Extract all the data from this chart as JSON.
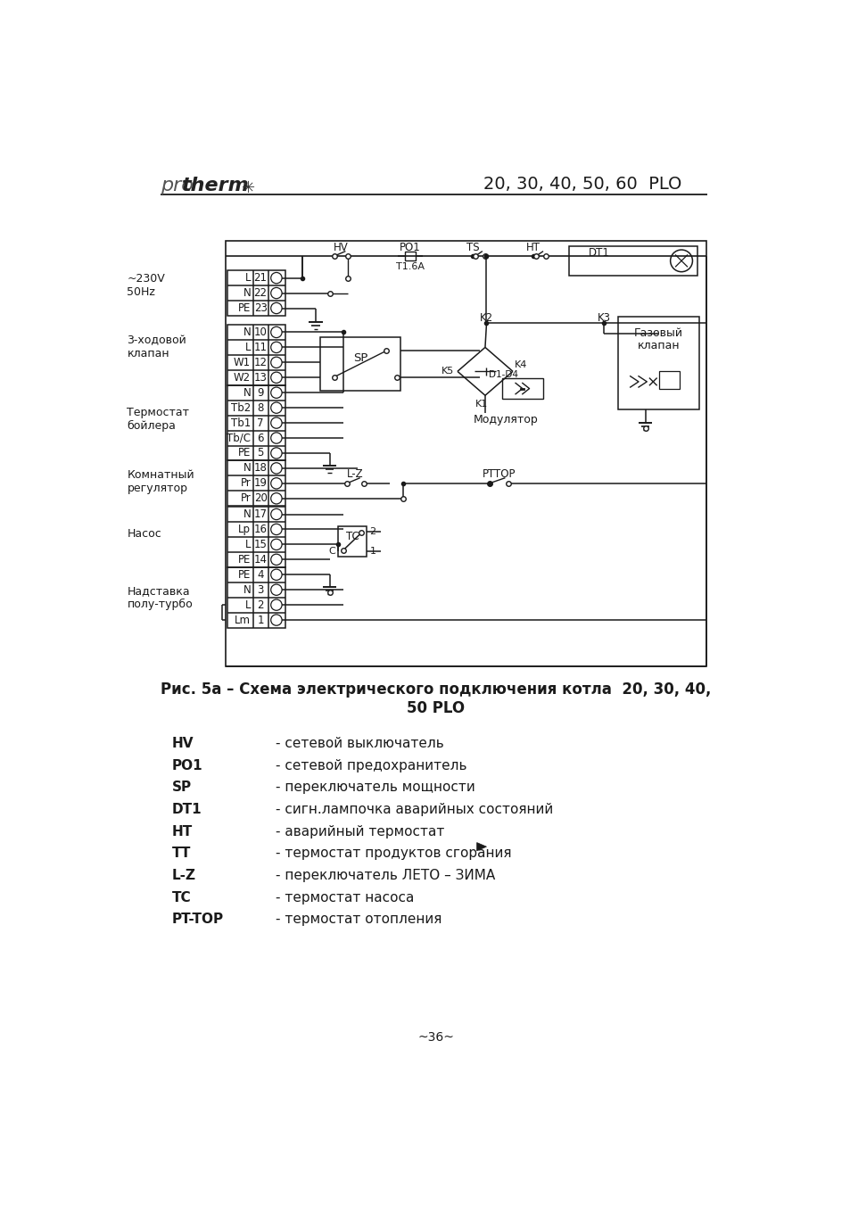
{
  "title_header": "20, 30, 40, 50, 60  PLO",
  "caption_line1": "Рис. 5а – Схема электрического подключения котла  20, 30, 40,",
  "caption_line2": "50 PLO",
  "legend": [
    [
      "HV",
      "- сетевой выключатель"
    ],
    [
      "PO1",
      "- сетевой предохранитель"
    ],
    [
      "SP",
      "- переключатель мощности"
    ],
    [
      "DT1",
      "- сигн.лампочка аварийных состояний"
    ],
    [
      "HT",
      "- аварийный термостат"
    ],
    [
      "TT",
      "- термостат продуктов сгорания"
    ],
    [
      "L-Z",
      "- переключатель ЛЕТО – ЗИМА"
    ],
    [
      "TC",
      "- термостат насоса"
    ],
    [
      "PT-TOP",
      "- термостат отопления"
    ]
  ],
  "page_number": "~36~",
  "bg_color": "#ffffff",
  "text_color": "#1a1a1a"
}
